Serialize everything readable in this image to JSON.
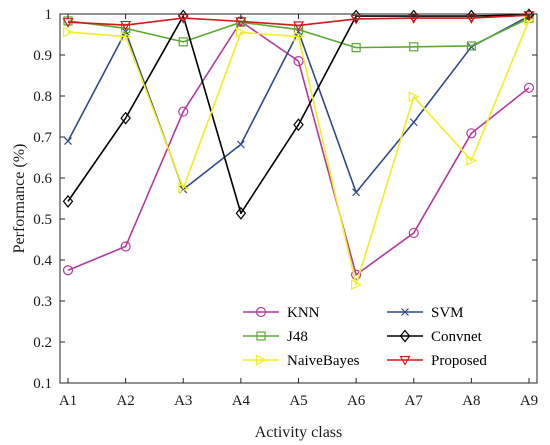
{
  "chart_data": {
    "type": "line",
    "xlabel": "Activity class",
    "ylabel": "Performance (%)",
    "categories": [
      "A1",
      "A2",
      "A3",
      "A4",
      "A5",
      "A6",
      "A7",
      "A8",
      "A9"
    ],
    "ylim": [
      0.1,
      1.0
    ],
    "yticks": [
      0.1,
      0.2,
      0.3,
      0.4,
      0.5,
      0.6,
      0.7,
      0.8,
      0.9,
      1.0
    ],
    "ytick_labels": [
      "0.1",
      "0.2",
      "0.3",
      "0.4",
      "0.5",
      "0.6",
      "0.7",
      "0.8",
      "0.9",
      "1"
    ],
    "grid": false,
    "legend_position": "bottom-right",
    "series": [
      {
        "name": "KNN",
        "color": "#b5399c",
        "marker": "circle",
        "values": [
          0.375,
          0.433,
          0.762,
          0.982,
          0.885,
          0.364,
          0.466,
          0.709,
          0.82
        ]
      },
      {
        "name": "SVM",
        "color": "#2f4a8c",
        "marker": "x",
        "values": [
          0.69,
          0.957,
          0.572,
          0.682,
          0.957,
          0.565,
          0.736,
          0.92,
          0.995
        ]
      },
      {
        "name": "J48",
        "color": "#5aaa32",
        "marker": "square",
        "values": [
          0.983,
          0.965,
          0.932,
          0.98,
          0.962,
          0.918,
          0.92,
          0.922,
          0.99
        ]
      },
      {
        "name": "Convnet",
        "color": "#000000",
        "marker": "diamond",
        "values": [
          0.543,
          0.746,
          0.995,
          0.514,
          0.73,
          0.995,
          0.995,
          0.995,
          0.998
        ]
      },
      {
        "name": "NaiveBayes",
        "color": "#f2ee23",
        "marker": "triangle-right",
        "values": [
          0.956,
          0.945,
          0.575,
          0.955,
          0.945,
          0.34,
          0.798,
          0.643,
          0.985
        ]
      },
      {
        "name": "Proposed",
        "color": "#d11a1a",
        "marker": "triangle-down",
        "values": [
          0.98,
          0.973,
          0.99,
          0.982,
          0.972,
          0.988,
          0.99,
          0.99,
          0.997
        ]
      }
    ]
  }
}
